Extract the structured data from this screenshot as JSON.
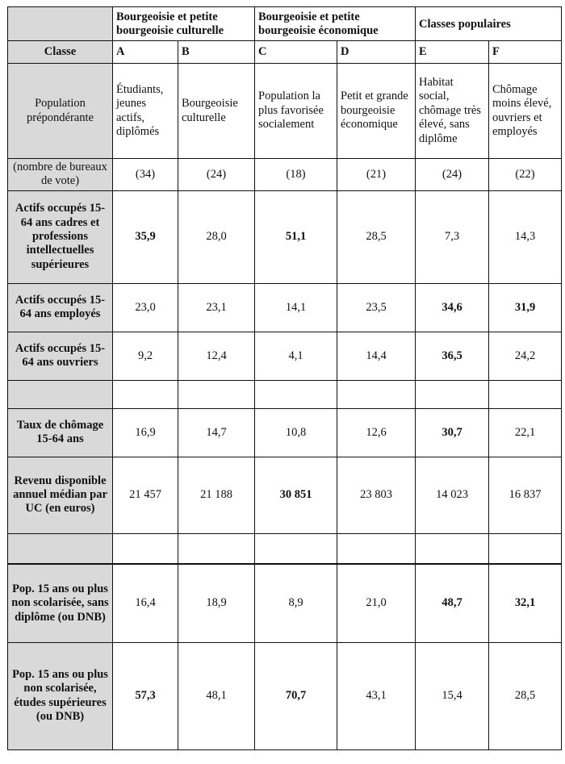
{
  "groups": [
    {
      "label": "Bourgeoisie et petite bourgeoisie culturelle"
    },
    {
      "label": "Bourgeoisie et petite bourgeoisie économique"
    },
    {
      "label": "Classes populaires"
    }
  ],
  "classe_label": "Classe",
  "classes": [
    "A",
    "B",
    "C",
    "D",
    "E",
    "F"
  ],
  "population_label": "Population prépondérante",
  "populations": [
    "Étudiants, jeunes actifs, diplômés",
    "Bourgeoisie culturelle",
    "Population la plus favorisée socialement",
    "Petit et grande bourgeoisie économique",
    "Habitat social, chômage très élevé, sans diplôme",
    "Chômage moins élevé, ouvriers et employés"
  ],
  "count_label": "(nombre de bureaux de vote)",
  "counts": [
    "(34)",
    "(24)",
    "(18)",
    "(21)",
    "(24)",
    "(22)"
  ],
  "rows": [
    {
      "label": "Actifs occupés 15-64 ans cadres et professions intellectuelles supérieures",
      "values": [
        "35,9",
        "28,0",
        "51,1",
        "28,5",
        "7,3",
        "14,3"
      ],
      "bold": [
        true,
        false,
        true,
        false,
        false,
        false
      ]
    },
    {
      "label": "Actifs occupés 15-64 ans employés",
      "values": [
        "23,0",
        "23,1",
        "14,1",
        "23,5",
        "34,6",
        "31,9"
      ],
      "bold": [
        false,
        false,
        false,
        false,
        true,
        true
      ]
    },
    {
      "label": "Actifs occupés 15-64 ans ouvriers",
      "values": [
        "9,2",
        "12,4",
        "4,1",
        "14,4",
        "36,5",
        "24,2"
      ],
      "bold": [
        false,
        false,
        false,
        false,
        true,
        false
      ]
    },
    {
      "label": "Taux de chômage 15-64 ans",
      "values": [
        "16,9",
        "14,7",
        "10,8",
        "12,6",
        "30,7",
        "22,1"
      ],
      "bold": [
        false,
        false,
        false,
        false,
        true,
        false
      ]
    },
    {
      "label": "Revenu disponible annuel médian par UC (en euros)",
      "values": [
        "21 457",
        "21 188",
        "30 851",
        "23 803",
        "14 023",
        "16 837"
      ],
      "bold": [
        false,
        false,
        true,
        false,
        false,
        false
      ]
    },
    {
      "label": "Pop. 15 ans ou plus non scolarisée, sans diplôme (ou DNB)",
      "values": [
        "16,4",
        "18,9",
        "8,9",
        "21,0",
        "48,7",
        "32,1"
      ],
      "bold": [
        false,
        false,
        false,
        false,
        true,
        true
      ]
    },
    {
      "label": "Pop. 15 ans ou plus non scolarisée, études supérieures (ou DNB)",
      "values": [
        "57,3",
        "48,1",
        "70,7",
        "43,1",
        "15,4",
        "28,5"
      ],
      "bold": [
        true,
        false,
        true,
        false,
        false,
        false
      ]
    }
  ]
}
